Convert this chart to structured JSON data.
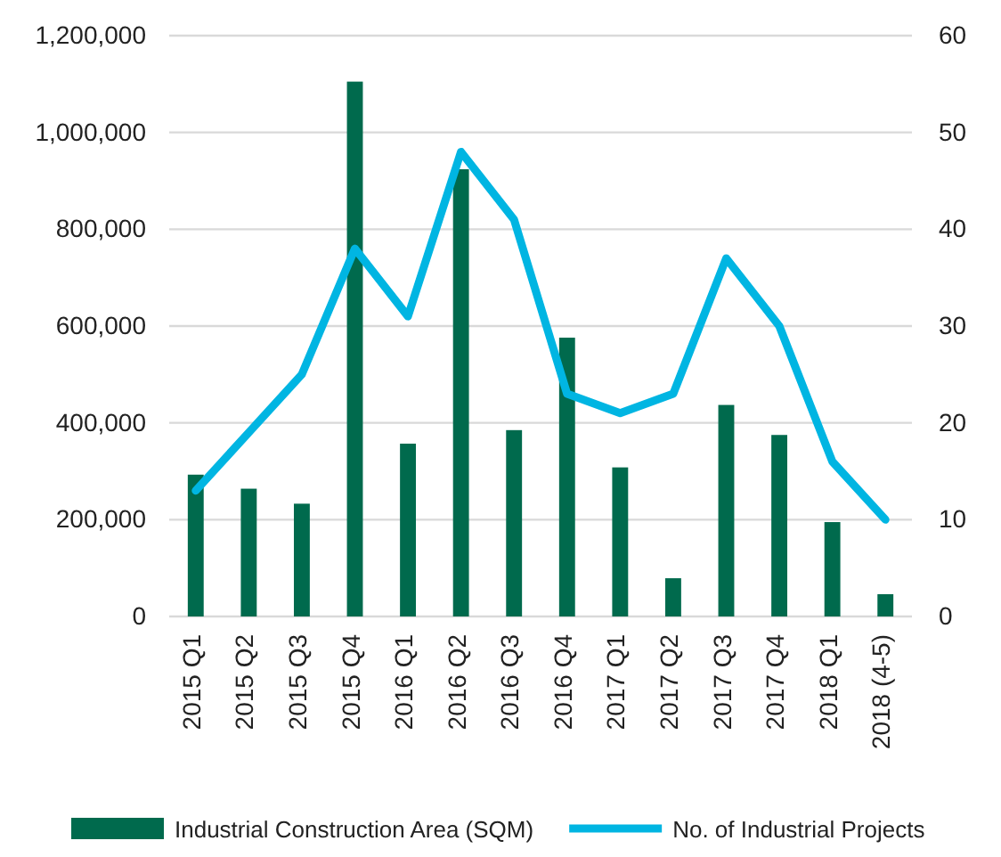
{
  "chart_data": {
    "type": "bar",
    "categories": [
      "2015 Q1",
      "2015 Q2",
      "2015 Q3",
      "2015 Q4",
      "2016 Q1",
      "2016 Q2",
      "2016 Q3",
      "2016 Q4",
      "2017 Q1",
      "2017 Q2",
      "2017 Q3",
      "2017 Q4",
      "2018 Q1",
      "2018 (4-5)"
    ],
    "series": [
      {
        "name": "Industrial Construction Area (SQM)",
        "color": "#006a4d",
        "values": [
          293000,
          264000,
          233000,
          1105000,
          357000,
          924000,
          385000,
          576000,
          308000,
          79000,
          437000,
          375000,
          195000,
          46000
        ]
      },
      {
        "name": "No. of Industrial Projects",
        "type": "line",
        "axis": "y2",
        "color": "#00b5e2",
        "values": [
          13,
          19,
          25,
          38,
          31,
          48,
          41,
          23,
          21,
          23,
          37,
          30,
          16,
          10
        ]
      }
    ],
    "ylim": [
      0,
      1200000
    ],
    "yticks": [
      {
        "value": 0,
        "label": "0"
      },
      {
        "value": 200000,
        "label": "200,000"
      },
      {
        "value": 400000,
        "label": "400,000"
      },
      {
        "value": 600000,
        "label": "600,000"
      },
      {
        "value": 800000,
        "label": "800,000"
      },
      {
        "value": 1000000,
        "label": "1,000,000"
      },
      {
        "value": 1200000,
        "label": "1,200,000"
      }
    ],
    "y2lim": [
      0,
      60
    ],
    "y2ticks": [
      0,
      10,
      20,
      30,
      40,
      50,
      60
    ],
    "grid": "y",
    "legend": "bottom",
    "marker": "none",
    "line_style": "solid"
  }
}
